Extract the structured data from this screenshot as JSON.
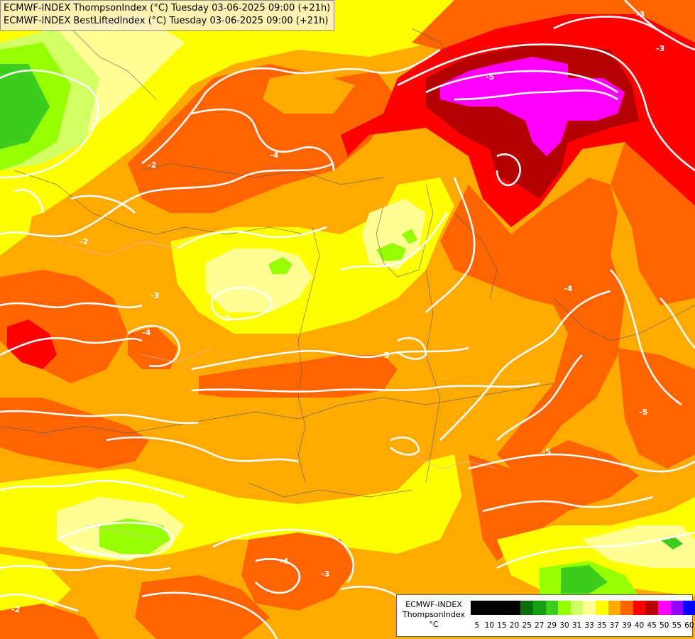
{
  "title": {
    "line1": "ECMWF-INDEX ThompsonIndex (°C) Tuesday 03-06-2025 09:00 (+21h)",
    "line2": "ECMWF-INDEX BestLiftedIndex (°C) Tuesday 03-06-2025 09:00 (+21h)"
  },
  "legend": {
    "line1": "ECMWF-INDEX",
    "line2": "ThompsonIndex",
    "line3": "°C",
    "bins": [
      {
        "label": "5",
        "color": "#000000"
      },
      {
        "label": "10",
        "color": "#000000"
      },
      {
        "label": "15",
        "color": "#000000"
      },
      {
        "label": "20",
        "color": "#000000"
      },
      {
        "label": "25",
        "color": "#0a6e0a"
      },
      {
        "label": "27",
        "color": "#12a012"
      },
      {
        "label": "29",
        "color": "#3ccd1e"
      },
      {
        "label": "30",
        "color": "#96ff00"
      },
      {
        "label": "31",
        "color": "#d2ff64"
      },
      {
        "label": "33",
        "color": "#ffff96"
      },
      {
        "label": "35",
        "color": "#ffff00"
      },
      {
        "label": "37",
        "color": "#ffaa00"
      },
      {
        "label": "39",
        "color": "#ff6400"
      },
      {
        "label": "40",
        "color": "#ff0000"
      },
      {
        "label": "45",
        "color": "#b40000"
      },
      {
        "label": "50",
        "color": "#ff00ff"
      },
      {
        "label": "55",
        "color": "#9600ff"
      },
      {
        "label": "60",
        "color": "#0000ff"
      }
    ]
  },
  "contour_labels": [
    "-2",
    "-3",
    "-4",
    "-5",
    "-2",
    "-3",
    "-4",
    "-5",
    "-2",
    "-3",
    "-4",
    "-5",
    "-2",
    "-3",
    "-4",
    "-5"
  ]
}
